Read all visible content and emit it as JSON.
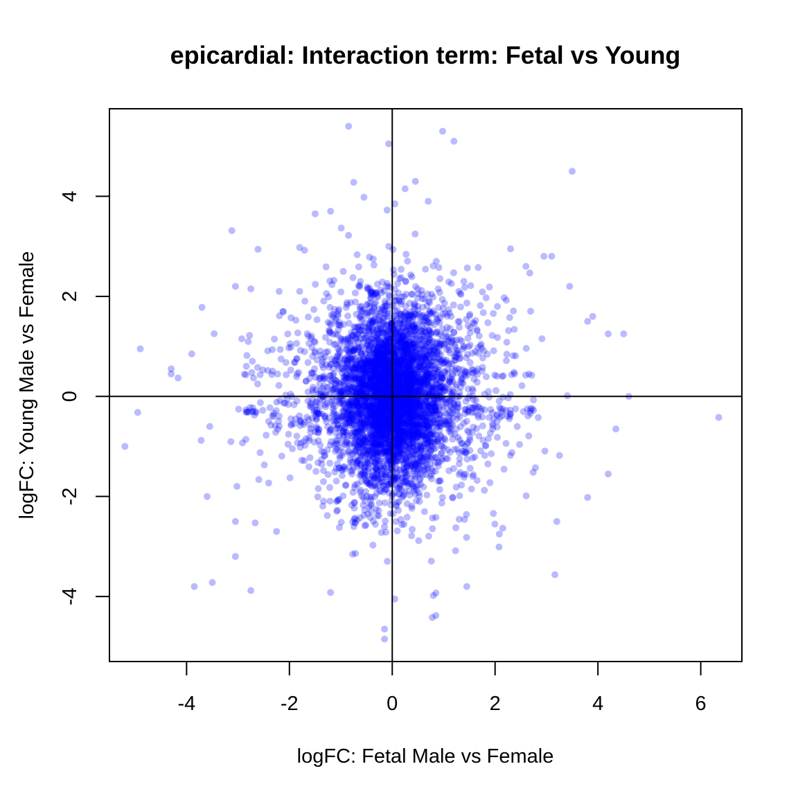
{
  "chart_data": {
    "type": "scatter",
    "title": "epicardial: Interaction term: Fetal vs Young",
    "xlabel": "logFC: Fetal Male vs Female",
    "ylabel": "logFC: Young Male vs Female",
    "xlim": [
      -5.5,
      6.8
    ],
    "ylim": [
      -5.3,
      5.75
    ],
    "x_ticks": [
      "-4",
      "-2",
      "0",
      "2",
      "4",
      "6"
    ],
    "y_ticks": [
      "-4",
      "-2",
      "0",
      "2",
      "4"
    ],
    "reference_lines": {
      "x": 0,
      "y": 0
    },
    "point_color": "#0000FF",
    "point_opacity": 0.27,
    "series": [
      {
        "values": [
          [
            -0.85,
            5.4
          ],
          [
            0.98,
            5.3
          ],
          [
            1.2,
            5.1
          ],
          [
            -0.07,
            5.05
          ],
          [
            3.5,
            4.5
          ],
          [
            0.45,
            4.3
          ],
          [
            -0.75,
            4.28
          ],
          [
            0.25,
            4.15
          ],
          [
            -0.55,
            3.98
          ],
          [
            0.05,
            3.85
          ],
          [
            -1.5,
            3.65
          ],
          [
            -1.2,
            3.7
          ],
          [
            0.7,
            3.9
          ],
          [
            -5.2,
            -1.0
          ],
          [
            -4.95,
            -0.32
          ],
          [
            -4.9,
            0.95
          ],
          [
            -4.3,
            0.55
          ],
          [
            -4.3,
            0.45
          ],
          [
            -3.9,
            0.85
          ],
          [
            -3.85,
            -3.8
          ],
          [
            -3.5,
            -3.72
          ],
          [
            -3.6,
            -2.0
          ],
          [
            -2.75,
            -3.88
          ],
          [
            -3.05,
            -3.2
          ],
          [
            -3.05,
            -2.5
          ],
          [
            -2.25,
            -2.7
          ],
          [
            -2.75,
            2.15
          ],
          [
            -3.05,
            2.2
          ],
          [
            -3.7,
            1.78
          ],
          [
            6.35,
            -0.42
          ],
          [
            4.6,
            0.0
          ],
          [
            4.5,
            1.25
          ],
          [
            4.2,
            1.25
          ],
          [
            4.35,
            -0.65
          ],
          [
            4.2,
            -1.55
          ],
          [
            3.8,
            -2.02
          ],
          [
            3.8,
            1.5
          ],
          [
            3.9,
            1.6
          ],
          [
            3.2,
            -2.5
          ],
          [
            -0.15,
            -4.65
          ],
          [
            -0.15,
            -4.85
          ],
          [
            0.05,
            -4.05
          ],
          [
            0.78,
            -4.42
          ],
          [
            0.85,
            -4.38
          ],
          [
            0.85,
            -3.93
          ],
          [
            0.8,
            -3.98
          ],
          [
            1.45,
            -3.8
          ],
          [
            -1.2,
            -3.92
          ],
          [
            3.1,
            2.8
          ],
          [
            2.95,
            2.8
          ],
          [
            2.6,
            2.6
          ],
          [
            3.45,
            2.2
          ],
          [
            -2.2,
            2.1
          ],
          [
            -1.8,
            2.1
          ],
          [
            2.3,
            2.95
          ]
        ]
      }
    ]
  }
}
